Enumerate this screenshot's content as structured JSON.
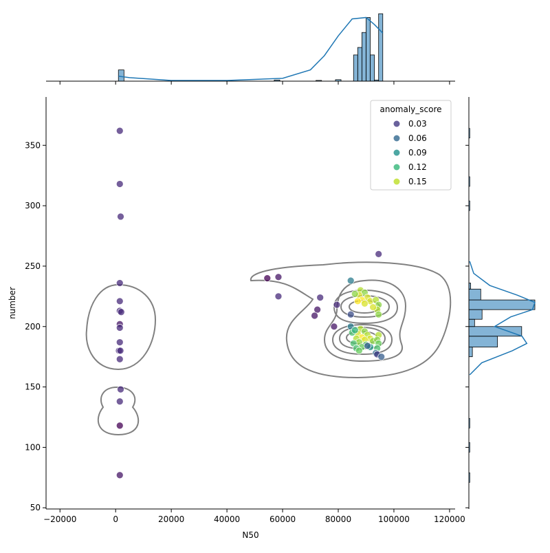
{
  "chart_data": {
    "type": "scatter",
    "title": "",
    "xlabel": "N50",
    "ylabel": "number",
    "xlim": [
      -25000,
      122000
    ],
    "ylim": [
      49,
      390
    ],
    "x_ticks": [
      -20000,
      0,
      20000,
      40000,
      60000,
      80000,
      100000,
      120000
    ],
    "x_tick_labels": [
      "−20000",
      "0",
      "20000",
      "40000",
      "60000",
      "80000",
      "100000",
      "120000"
    ],
    "y_ticks": [
      50,
      100,
      150,
      200,
      250,
      300,
      350
    ],
    "y_tick_labels": [
      "50",
      "100",
      "150",
      "200",
      "250",
      "300",
      "350"
    ],
    "grid": false,
    "legend": {
      "title": "anomaly_score",
      "placement": "top-right",
      "entries": [
        {
          "label": "0.03",
          "color": "#443983"
        },
        {
          "label": "0.06",
          "color": "#31688e"
        },
        {
          "label": "0.09",
          "color": "#21918c"
        },
        {
          "label": "0.12",
          "color": "#35b779"
        },
        {
          "label": "0.15",
          "color": "#bddf26"
        }
      ]
    },
    "colormap": [
      "#440154",
      "#472d7b",
      "#3b528b",
      "#2c728e",
      "#21918c",
      "#28ae80",
      "#5ec962",
      "#addc30",
      "#fde725"
    ],
    "color_range": [
      0.0,
      0.17
    ],
    "points": [
      {
        "x": 1500,
        "y": 362,
        "c": 0.02
      },
      {
        "x": 1500,
        "y": 318,
        "c": 0.02
      },
      {
        "x": 1800,
        "y": 291,
        "c": 0.02
      },
      {
        "x": 1500,
        "y": 236,
        "c": 0.02
      },
      {
        "x": 1500,
        "y": 221,
        "c": 0.02
      },
      {
        "x": 1500,
        "y": 213,
        "c": 0.02
      },
      {
        "x": 2000,
        "y": 212,
        "c": 0.02
      },
      {
        "x": 1500,
        "y": 202,
        "c": 0.01
      },
      {
        "x": 1500,
        "y": 199,
        "c": 0.02
      },
      {
        "x": 1500,
        "y": 187,
        "c": 0.02
      },
      {
        "x": 1200,
        "y": 180,
        "c": 0.02
      },
      {
        "x": 1700,
        "y": 180,
        "c": 0.02
      },
      {
        "x": 1500,
        "y": 173,
        "c": 0.02
      },
      {
        "x": 1800,
        "y": 148,
        "c": 0.02
      },
      {
        "x": 1500,
        "y": 138,
        "c": 0.02
      },
      {
        "x": 1500,
        "y": 118,
        "c": 0.0
      },
      {
        "x": 1500,
        "y": 77,
        "c": 0.01
      },
      {
        "x": 54500,
        "y": 240,
        "c": 0.0
      },
      {
        "x": 58500,
        "y": 241,
        "c": 0.01
      },
      {
        "x": 58500,
        "y": 225,
        "c": 0.02
      },
      {
        "x": 73500,
        "y": 224,
        "c": 0.02
      },
      {
        "x": 72500,
        "y": 214,
        "c": 0.01
      },
      {
        "x": 71500,
        "y": 209,
        "c": 0.01
      },
      {
        "x": 79500,
        "y": 218,
        "c": 0.02
      },
      {
        "x": 78500,
        "y": 200,
        "c": 0.01
      },
      {
        "x": 84500,
        "y": 238,
        "c": 0.07
      },
      {
        "x": 94500,
        "y": 260,
        "c": 0.02
      },
      {
        "x": 84500,
        "y": 210,
        "c": 0.04
      },
      {
        "x": 88000,
        "y": 230,
        "c": 0.15
      },
      {
        "x": 89500,
        "y": 228,
        "c": 0.14
      },
      {
        "x": 87500,
        "y": 226,
        "c": 0.16
      },
      {
        "x": 90500,
        "y": 224,
        "c": 0.16
      },
      {
        "x": 88500,
        "y": 222,
        "c": 0.17
      },
      {
        "x": 87000,
        "y": 221,
        "c": 0.17
      },
      {
        "x": 91500,
        "y": 221,
        "c": 0.16
      },
      {
        "x": 89500,
        "y": 219,
        "c": 0.16
      },
      {
        "x": 93500,
        "y": 222,
        "c": 0.15
      },
      {
        "x": 94500,
        "y": 218,
        "c": 0.14
      },
      {
        "x": 94000,
        "y": 214,
        "c": 0.15
      },
      {
        "x": 94500,
        "y": 210,
        "c": 0.14
      },
      {
        "x": 92500,
        "y": 216,
        "c": 0.16
      },
      {
        "x": 86000,
        "y": 227,
        "c": 0.14
      },
      {
        "x": 88000,
        "y": 198,
        "c": 0.15
      },
      {
        "x": 89500,
        "y": 196,
        "c": 0.14
      },
      {
        "x": 87000,
        "y": 194,
        "c": 0.16
      },
      {
        "x": 90500,
        "y": 193,
        "c": 0.15
      },
      {
        "x": 88500,
        "y": 191,
        "c": 0.17
      },
      {
        "x": 86500,
        "y": 190,
        "c": 0.15
      },
      {
        "x": 91500,
        "y": 190,
        "c": 0.16
      },
      {
        "x": 89500,
        "y": 189,
        "c": 0.16
      },
      {
        "x": 87500,
        "y": 187,
        "c": 0.14
      },
      {
        "x": 92500,
        "y": 188,
        "c": 0.14
      },
      {
        "x": 85500,
        "y": 186,
        "c": 0.12
      },
      {
        "x": 90000,
        "y": 185,
        "c": 0.12
      },
      {
        "x": 88500,
        "y": 183,
        "c": 0.13
      },
      {
        "x": 86500,
        "y": 182,
        "c": 0.12
      },
      {
        "x": 91500,
        "y": 183,
        "c": 0.09
      },
      {
        "x": 84500,
        "y": 200,
        "c": 0.07
      },
      {
        "x": 85000,
        "y": 195,
        "c": 0.12
      },
      {
        "x": 86000,
        "y": 197,
        "c": 0.11
      },
      {
        "x": 94500,
        "y": 193,
        "c": 0.15
      },
      {
        "x": 94000,
        "y": 189,
        "c": 0.14
      },
      {
        "x": 94500,
        "y": 186,
        "c": 0.13
      },
      {
        "x": 94000,
        "y": 182,
        "c": 0.12
      },
      {
        "x": 93500,
        "y": 178,
        "c": 0.06
      },
      {
        "x": 94000,
        "y": 177,
        "c": 0.03
      },
      {
        "x": 95500,
        "y": 175,
        "c": 0.05
      },
      {
        "x": 90500,
        "y": 184,
        "c": 0.05
      },
      {
        "x": 87500,
        "y": 180,
        "c": 0.13
      }
    ],
    "x_marginal": {
      "bin_edges": [
        1000,
        3000,
        57000,
        59000,
        72000,
        74000,
        79000,
        81000,
        84000,
        85500,
        87000,
        88500,
        90000,
        91500,
        93000,
        94500,
        96000
      ],
      "counts": [
        3,
        0,
        0.3,
        0,
        0.2,
        0,
        0.4,
        0,
        0,
        7,
        9,
        13,
        17,
        7,
        0.3,
        18
      ],
      "kde": {
        "x": [
          1000,
          5000,
          20000,
          40000,
          60000,
          70000,
          75000,
          80000,
          85000,
          90000,
          93000,
          96000
        ],
        "y": [
          0.35,
          0.25,
          0.05,
          0.05,
          0.2,
          0.8,
          1.8,
          3.2,
          4.4,
          4.5,
          4.0,
          3.4
        ]
      }
    },
    "y_marginal": {
      "bin_edges": [
        175,
        183,
        192,
        200,
        206,
        214,
        222,
        231,
        236
      ],
      "counts": [
        0.8,
        6.5,
        12.0,
        1.3,
        3.0,
        15.0,
        2.7,
        0.4
      ],
      "kde": {
        "y": [
          160,
          170,
          180,
          186,
          192,
          200,
          208,
          214,
          220,
          226,
          234,
          244,
          254
        ],
        "x": [
          0.1,
          1.6,
          5.4,
          7.2,
          6.6,
          3.2,
          5.2,
          7.9,
          8.2,
          6.0,
          2.6,
          0.6,
          0.1
        ]
      }
    }
  }
}
